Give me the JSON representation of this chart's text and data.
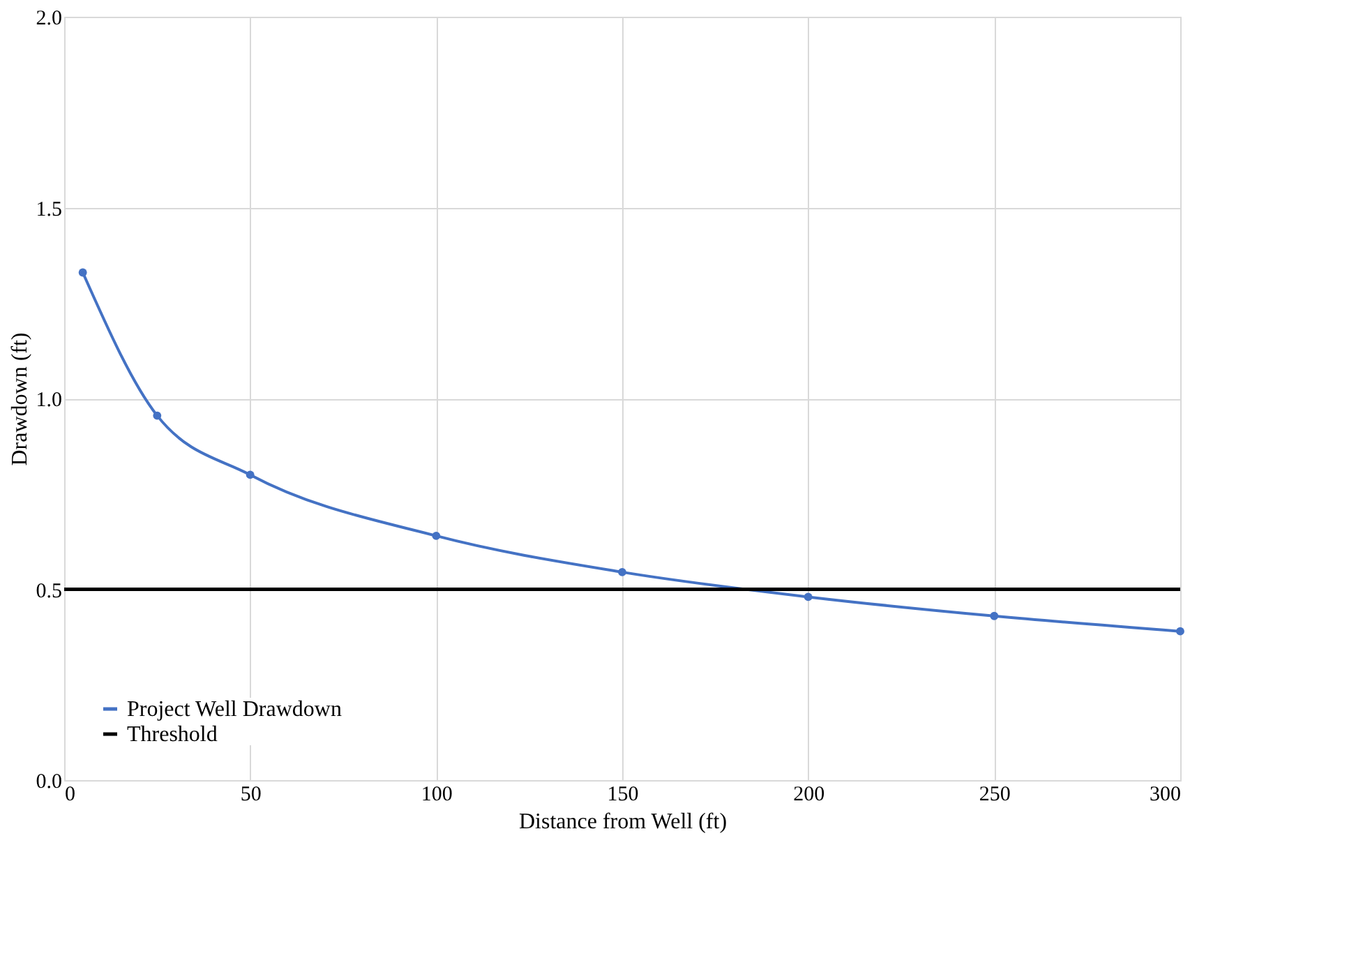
{
  "chart_data": {
    "type": "line",
    "xlabel": "Distance from Well (ft)",
    "ylabel": "Drawdown (ft)",
    "series": [
      {
        "name": "Project Well Drawdown",
        "color": "#4472c4",
        "marker": "circle",
        "x": [
          5,
          25,
          50,
          100,
          150,
          200,
          250,
          300
        ],
        "values": [
          1.33,
          0.955,
          0.8,
          0.64,
          0.545,
          0.48,
          0.43,
          0.39
        ]
      },
      {
        "name": "Threshold",
        "color": "#000000",
        "marker": "none",
        "x": [
          0,
          300
        ],
        "values": [
          0.5,
          0.5
        ]
      }
    ],
    "xlim": [
      0,
      300
    ],
    "xticks": [
      0,
      50,
      100,
      150,
      200,
      250,
      300
    ],
    "ylim": [
      0,
      2
    ],
    "yticks": [
      {
        "value": 0,
        "label": "0.0"
      },
      {
        "value": 0.5,
        "label": "0.5"
      },
      {
        "value": 1,
        "label": "1.0"
      },
      {
        "value": 1.5,
        "label": "1.5"
      },
      {
        "value": 2,
        "label": "2.0"
      }
    ],
    "grid": true,
    "legend": "bottom left"
  }
}
